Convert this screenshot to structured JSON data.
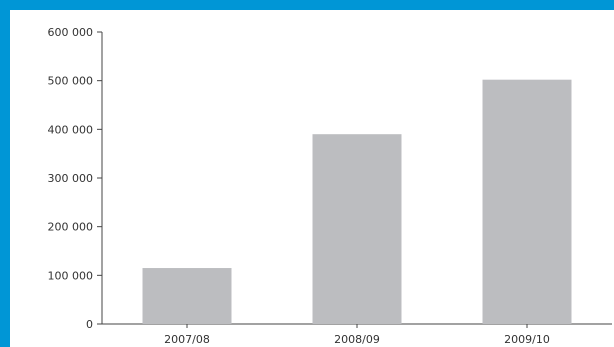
{
  "colors": {
    "frame": "#0096d6",
    "panel": "#ffffff",
    "bar": "#bcbdc0",
    "axis": "#444444",
    "text": "#333333"
  },
  "chart_data": {
    "type": "bar",
    "title": "",
    "xlabel": "",
    "ylabel": "",
    "categories": [
      "2007/08",
      "2008/09",
      "2009/10"
    ],
    "values": [
      115000,
      390000,
      502000
    ],
    "ylim": [
      0,
      600000
    ],
    "yticks": [
      0,
      100000,
      200000,
      300000,
      400000,
      500000,
      600000
    ],
    "ytick_labels": [
      "0",
      "100 000",
      "200 000",
      "300 000",
      "400 000",
      "500 000",
      "600 000"
    ],
    "grid": false,
    "legend": "none"
  }
}
